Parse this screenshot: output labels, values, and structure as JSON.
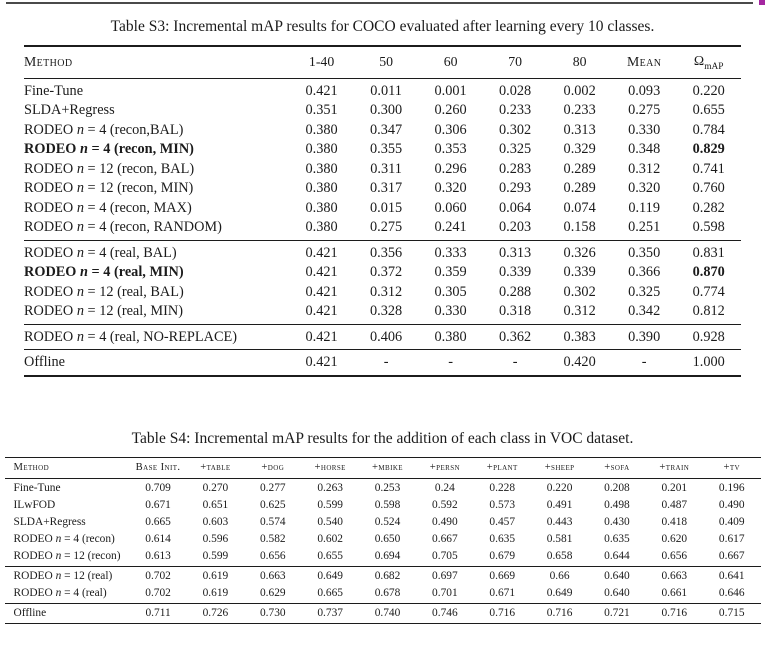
{
  "page": {
    "top_rule_color": "#4a4a4a",
    "corner_mark_color": "#a426a0"
  },
  "table_s3": {
    "caption": "Table S3: Incremental mAP results for COCO evaluated after learning every 10 classes.",
    "headers": {
      "method": "Method",
      "cols": [
        "1-40",
        "50",
        "60",
        "70",
        "80",
        "Mean"
      ],
      "omega_base": "Ω",
      "omega_sub": "mAP"
    },
    "groups": [
      [
        {
          "method": "Fine-Tune",
          "values": [
            "0.421",
            "0.011",
            "0.001",
            "0.028",
            "0.002",
            "0.093",
            "0.220"
          ]
        },
        {
          "method": "SLDA+Regress",
          "values": [
            "0.351",
            "0.300",
            "0.260",
            "0.233",
            "0.233",
            "0.275",
            "0.655"
          ]
        },
        {
          "method": "RODEO n = 4 (recon,BAL)",
          "values": [
            "0.380",
            "0.347",
            "0.306",
            "0.302",
            "0.313",
            "0.330",
            "0.784"
          ]
        },
        {
          "method": "RODEO n = 4 (recon, MIN)",
          "bold_method": true,
          "bold_cols": [
            6
          ],
          "values": [
            "0.380",
            "0.355",
            "0.353",
            "0.325",
            "0.329",
            "0.348",
            "0.829"
          ]
        },
        {
          "method": "RODEO n = 12 (recon, BAL)",
          "values": [
            "0.380",
            "0.311",
            "0.296",
            "0.283",
            "0.289",
            "0.312",
            "0.741"
          ]
        },
        {
          "method": "RODEO n = 12 (recon, MIN)",
          "values": [
            "0.380",
            "0.317",
            "0.320",
            "0.293",
            "0.289",
            "0.320",
            "0.760"
          ]
        },
        {
          "method": "RODEO n = 4 (recon, MAX)",
          "values": [
            "0.380",
            "0.015",
            "0.060",
            "0.064",
            "0.074",
            "0.119",
            "0.282"
          ]
        },
        {
          "method": "RODEO n = 4 (recon, RANDOM)",
          "values": [
            "0.380",
            "0.275",
            "0.241",
            "0.203",
            "0.158",
            "0.251",
            "0.598"
          ]
        }
      ],
      [
        {
          "method": "RODEO n = 4 (real, BAL)",
          "values": [
            "0.421",
            "0.356",
            "0.333",
            "0.313",
            "0.326",
            "0.350",
            "0.831"
          ]
        },
        {
          "method": "RODEO n = 4 (real, MIN)",
          "bold_method": true,
          "bold_cols": [
            6
          ],
          "values": [
            "0.421",
            "0.372",
            "0.359",
            "0.339",
            "0.339",
            "0.366",
            "0.870"
          ]
        },
        {
          "method": "RODEO n = 12 (real, BAL)",
          "values": [
            "0.421",
            "0.312",
            "0.305",
            "0.288",
            "0.302",
            "0.325",
            "0.774"
          ]
        },
        {
          "method": "RODEO n = 12 (real, MIN)",
          "values": [
            "0.421",
            "0.328",
            "0.330",
            "0.318",
            "0.312",
            "0.342",
            "0.812"
          ]
        }
      ],
      [
        {
          "method": "RODEO n = 4 (real, NO-REPLACE)",
          "values": [
            "0.421",
            "0.406",
            "0.380",
            "0.362",
            "0.383",
            "0.390",
            "0.928"
          ]
        }
      ],
      [
        {
          "method": "Offline",
          "values": [
            "0.421",
            "-",
            "-",
            "-",
            "0.420",
            "-",
            "1.000"
          ]
        }
      ]
    ]
  },
  "table_s4": {
    "caption": "Table S4: Incremental mAP results for the addition of each class in VOC dataset.",
    "headers": [
      "Method",
      "Base Init.",
      "+table",
      "+dog",
      "+horse",
      "+mbike",
      "+persn",
      "+plant",
      "+sheep",
      "+sofa",
      "+train",
      "+tv"
    ],
    "groups": [
      [
        {
          "method": "Fine-Tune",
          "values": [
            "0.709",
            "0.270",
            "0.277",
            "0.263",
            "0.253",
            "0.24",
            "0.228",
            "0.220",
            "0.208",
            "0.201",
            "0.196"
          ]
        },
        {
          "method": "ILwFOD",
          "values": [
            "0.671",
            "0.651",
            "0.625",
            "0.599",
            "0.598",
            "0.592",
            "0.573",
            "0.491",
            "0.498",
            "0.487",
            "0.490"
          ]
        },
        {
          "method": "SLDA+Regress",
          "values": [
            "0.665",
            "0.603",
            "0.574",
            "0.540",
            "0.524",
            "0.490",
            "0.457",
            "0.443",
            "0.430",
            "0.418",
            "0.409"
          ]
        },
        {
          "method": "RODEO n = 4 (recon)",
          "values": [
            "0.614",
            "0.596",
            "0.582",
            "0.602",
            "0.650",
            "0.667",
            "0.635",
            "0.581",
            "0.635",
            "0.620",
            "0.617"
          ]
        },
        {
          "method": "RODEO n = 12 (recon)",
          "values": [
            "0.613",
            "0.599",
            "0.656",
            "0.655",
            "0.694",
            "0.705",
            "0.679",
            "0.658",
            "0.644",
            "0.656",
            "0.667"
          ]
        }
      ],
      [
        {
          "method": "RODEO n = 12 (real)",
          "values": [
            "0.702",
            "0.619",
            "0.663",
            "0.649",
            "0.682",
            "0.697",
            "0.669",
            "0.66",
            "0.640",
            "0.663",
            "0.641"
          ]
        },
        {
          "method": "RODEO n = 4 (real)",
          "values": [
            "0.702",
            "0.619",
            "0.629",
            "0.665",
            "0.678",
            "0.701",
            "0.671",
            "0.649",
            "0.640",
            "0.661",
            "0.646"
          ]
        }
      ],
      [
        {
          "method": "Offline",
          "values": [
            "0.711",
            "0.726",
            "0.730",
            "0.737",
            "0.740",
            "0.746",
            "0.716",
            "0.716",
            "0.721",
            "0.716",
            "0.715"
          ]
        }
      ]
    ]
  }
}
